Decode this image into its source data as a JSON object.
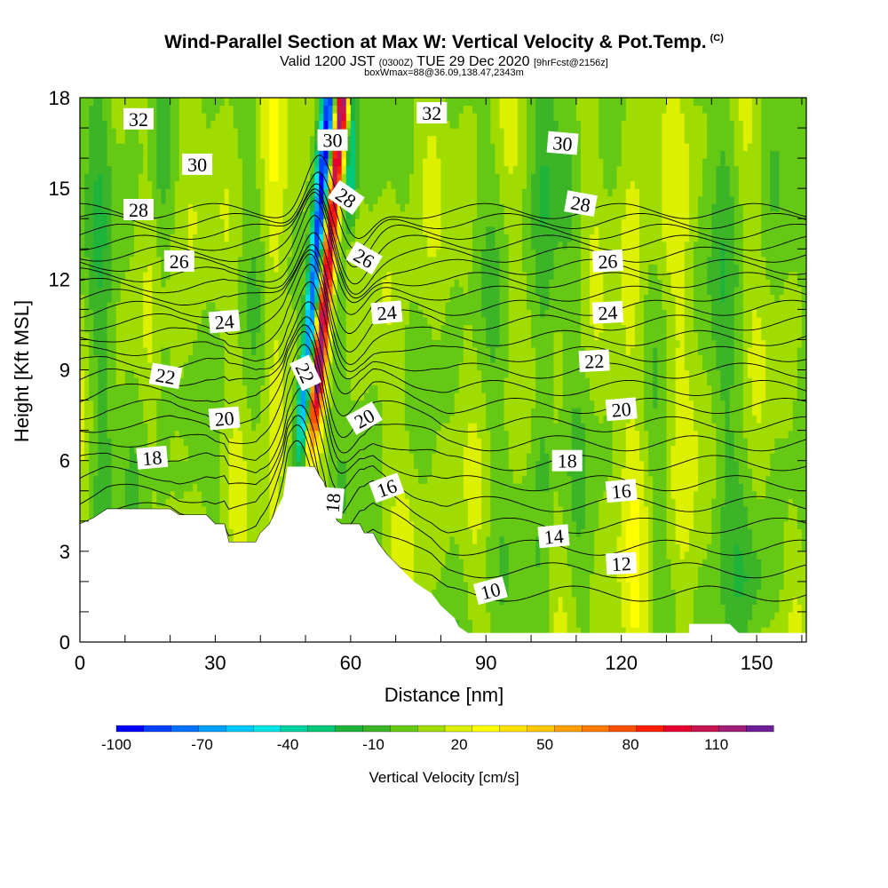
{
  "chart_data": {
    "type": "heatmap",
    "title": "Wind-Parallel Section at Max W: Vertical Velocity & Pot.Temp.",
    "title_tag": "(C)",
    "subtitle_valid": "Valid 1200 JST",
    "subtitle_z": "(0300Z)",
    "subtitle_date": "TUE 29 Dec 2020",
    "subtitle_fcst": "[9hrFcst@2156z]",
    "subtitle_box": "boxWmax=88@36.09,138.47,2343m",
    "xlabel": "Distance [nm]",
    "ylabel": "Height [Kft MSL]",
    "xlim": [
      0,
      161
    ],
    "ylim": [
      0,
      18
    ],
    "xticks": [
      0,
      30,
      60,
      90,
      120,
      150
    ],
    "yticks": [
      0,
      3,
      6,
      9,
      12,
      15,
      18
    ],
    "colorbar": {
      "label": "Vertical Velocity [cm/s]",
      "tick_labels": [
        -100,
        -70,
        -40,
        -10,
        20,
        50,
        80,
        110
      ],
      "min": -100,
      "max": 130,
      "step": 10,
      "colors": [
        "#0000ff",
        "#0040ff",
        "#0070ff",
        "#00a0ff",
        "#00c8ff",
        "#00e6e6",
        "#00d2a0",
        "#00c878",
        "#1eb43c",
        "#3cb428",
        "#64c814",
        "#a0dc00",
        "#dcf000",
        "#ffff00",
        "#ffe100",
        "#ffc800",
        "#ffa000",
        "#ff7800",
        "#ff5000",
        "#ff1e00",
        "#e6002d",
        "#c81450",
        "#a01e78",
        "#6e1e96"
      ]
    },
    "terrain": [
      [
        0,
        3.9
      ],
      [
        3,
        4.1
      ],
      [
        6,
        4.4
      ],
      [
        20,
        4.4
      ],
      [
        22,
        4.2
      ],
      [
        28,
        4.2
      ],
      [
        30,
        3.9
      ],
      [
        32,
        3.9
      ],
      [
        33,
        3.3
      ],
      [
        39,
        3.3
      ],
      [
        40,
        3.6
      ],
      [
        42,
        3.9
      ],
      [
        45,
        4.8
      ],
      [
        46,
        5.8
      ],
      [
        52,
        5.8
      ],
      [
        53,
        5.5
      ],
      [
        54,
        5.3
      ],
      [
        56,
        4.3
      ],
      [
        57,
        4.0
      ],
      [
        58,
        3.9
      ],
      [
        62,
        3.9
      ],
      [
        63,
        3.6
      ],
      [
        65,
        3.6
      ],
      [
        66,
        3.3
      ],
      [
        68,
        2.9
      ],
      [
        70,
        2.6
      ],
      [
        72,
        2.3
      ],
      [
        74,
        2.0
      ],
      [
        76,
        1.8
      ],
      [
        78,
        1.6
      ],
      [
        80,
        1.2
      ],
      [
        83,
        0.8
      ],
      [
        84,
        0.5
      ],
      [
        86,
        0.3
      ],
      [
        135,
        0.3
      ],
      [
        135,
        0.6
      ],
      [
        144,
        0.6
      ],
      [
        146,
        0.3
      ],
      [
        161,
        0.3
      ]
    ],
    "theta_contour_levels": [
      10,
      11,
      12,
      13,
      14,
      15,
      16,
      17,
      18,
      19,
      20,
      21,
      22,
      23,
      24,
      25,
      26,
      27,
      28,
      29,
      30,
      31,
      32,
      33
    ],
    "theta_contour_labels": [
      {
        "text": "32",
        "x": 13,
        "y": 17.3,
        "rot": 0
      },
      {
        "text": "30",
        "x": 26,
        "y": 15.8,
        "rot": 0
      },
      {
        "text": "28",
        "x": 13,
        "y": 14.3,
        "rot": 0
      },
      {
        "text": "26",
        "x": 22,
        "y": 12.6,
        "rot": 0
      },
      {
        "text": "24",
        "x": 32,
        "y": 10.6,
        "rot": -5
      },
      {
        "text": "22",
        "x": 19,
        "y": 8.8,
        "rot": 10
      },
      {
        "text": "20",
        "x": 32,
        "y": 7.4,
        "rot": -5
      },
      {
        "text": "18",
        "x": 16,
        "y": 6.1,
        "rot": -5
      },
      {
        "text": "30",
        "x": 56,
        "y": 16.6,
        "rot": 0
      },
      {
        "text": "28",
        "x": 59,
        "y": 14.7,
        "rot": 35
      },
      {
        "text": "26",
        "x": 63,
        "y": 12.7,
        "rot": 30
      },
      {
        "text": "24",
        "x": 68,
        "y": 10.9,
        "rot": -5
      },
      {
        "text": "22",
        "x": 50,
        "y": 8.9,
        "rot": 65
      },
      {
        "text": "20",
        "x": 63,
        "y": 7.4,
        "rot": -30
      },
      {
        "text": "18",
        "x": 56,
        "y": 4.6,
        "rot": -85
      },
      {
        "text": "16",
        "x": 68,
        "y": 5.1,
        "rot": -20
      },
      {
        "text": "32",
        "x": 78,
        "y": 17.5,
        "rot": 0
      },
      {
        "text": "30",
        "x": 107,
        "y": 16.5,
        "rot": 5
      },
      {
        "text": "28",
        "x": 111,
        "y": 14.5,
        "rot": 10
      },
      {
        "text": "26",
        "x": 117,
        "y": 12.6,
        "rot": -3
      },
      {
        "text": "24",
        "x": 117,
        "y": 10.9,
        "rot": -3
      },
      {
        "text": "22",
        "x": 114,
        "y": 9.3,
        "rot": -3
      },
      {
        "text": "20",
        "x": 120,
        "y": 7.7,
        "rot": -5
      },
      {
        "text": "18",
        "x": 108,
        "y": 6.0,
        "rot": 0
      },
      {
        "text": "16",
        "x": 120,
        "y": 5.0,
        "rot": -5
      },
      {
        "text": "14",
        "x": 105,
        "y": 3.5,
        "rot": -5
      },
      {
        "text": "12",
        "x": 120,
        "y": 2.6,
        "rot": -3
      },
      {
        "text": "10",
        "x": 91,
        "y": 1.7,
        "rot": -15
      }
    ]
  }
}
